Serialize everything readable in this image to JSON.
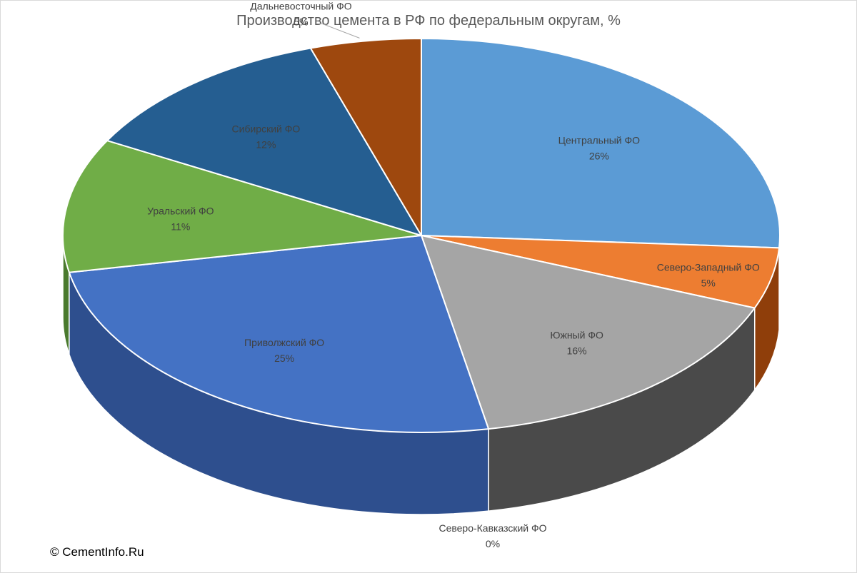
{
  "chart_data": {
    "type": "pie",
    "title": "Производство цемента в РФ по федеральным округам, %",
    "unit": "%",
    "slices": [
      {
        "name": "Центральный ФО",
        "value": 26,
        "label": "26%",
        "color": "#5B9BD5",
        "side_color": "#3d6f9e",
        "label_color": "#404040"
      },
      {
        "name": "Северо-Западный ФО",
        "value": 5,
        "label": "5%",
        "color": "#ED7D31",
        "side_color": "#8f3e0a",
        "label_color": "#404040"
      },
      {
        "name": "Южный ФО",
        "value": 16,
        "label": "16%",
        "color": "#A5A5A5",
        "side_color": "#4a4a4a",
        "label_color": "#404040"
      },
      {
        "name": "Северо-Кавказский ФО",
        "value": 0,
        "label": "0%",
        "color": "#FFC000",
        "side_color": "#a07800",
        "label_color": "#404040"
      },
      {
        "name": "Приволжский ФО",
        "value": 25,
        "label": "25%",
        "color": "#4472C4",
        "side_color": "#2e4f8e",
        "label_color": "#404040"
      },
      {
        "name": "Уральский ФО",
        "value": 11,
        "label": "11%",
        "color": "#70AD47",
        "side_color": "#4a7a2e",
        "label_color": "#404040"
      },
      {
        "name": "Сибирский ФО",
        "value": 12,
        "label": "12%",
        "color": "#255E91",
        "side_color": "#1a4266",
        "label_color": "#404040"
      },
      {
        "name": "Дальневосточный ФО",
        "value": 5,
        "label": "5%",
        "color": "#9E480E",
        "side_color": "#6b2f08",
        "label_color": "#404040"
      }
    ],
    "legend": "none"
  },
  "footer": {
    "copyright": "© CementInfo.Ru"
  }
}
